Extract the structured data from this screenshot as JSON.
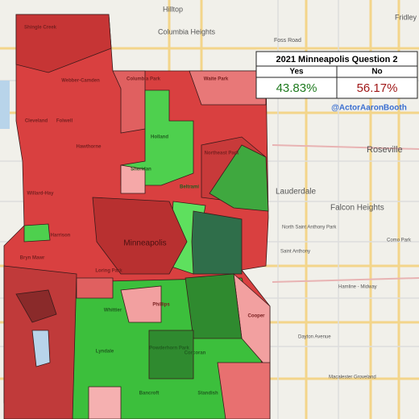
{
  "legend": {
    "title": "2021 Minneapolis Question 2",
    "yes_label": "Yes",
    "no_label": "No",
    "yes_value": "43.83%",
    "no_value": "56.17%"
  },
  "handle": "@ActorAaronBooth",
  "places": [
    "Hilltop",
    "Columbia Heights",
    "Roseville",
    "Lauderdale",
    "Falcon Heights",
    "Saint Anthony",
    "Minneapolis",
    "North Saint Anthony Park",
    "Como Park",
    "Hamline - Midway",
    "Dayton Avenue",
    "Macalester Groveland",
    "Fridley",
    "Foss Road"
  ],
  "neighborhoods": [
    "Shingle Creek",
    "Webber-Camden",
    "Columbia Park",
    "Waite Park",
    "Cleveland",
    "Folwell",
    "Hawthorne",
    "Holland",
    "Northeast Park",
    "Sheridan",
    "Beltrami",
    "Willard-Hay",
    "Harrison",
    "Bryn Mawr",
    "Loring Park",
    "Whittier",
    "Phillips",
    "Lyndale",
    "Powderhorn Park",
    "Corcoran",
    "Bancroft",
    "Standish",
    "Cooper"
  ]
}
